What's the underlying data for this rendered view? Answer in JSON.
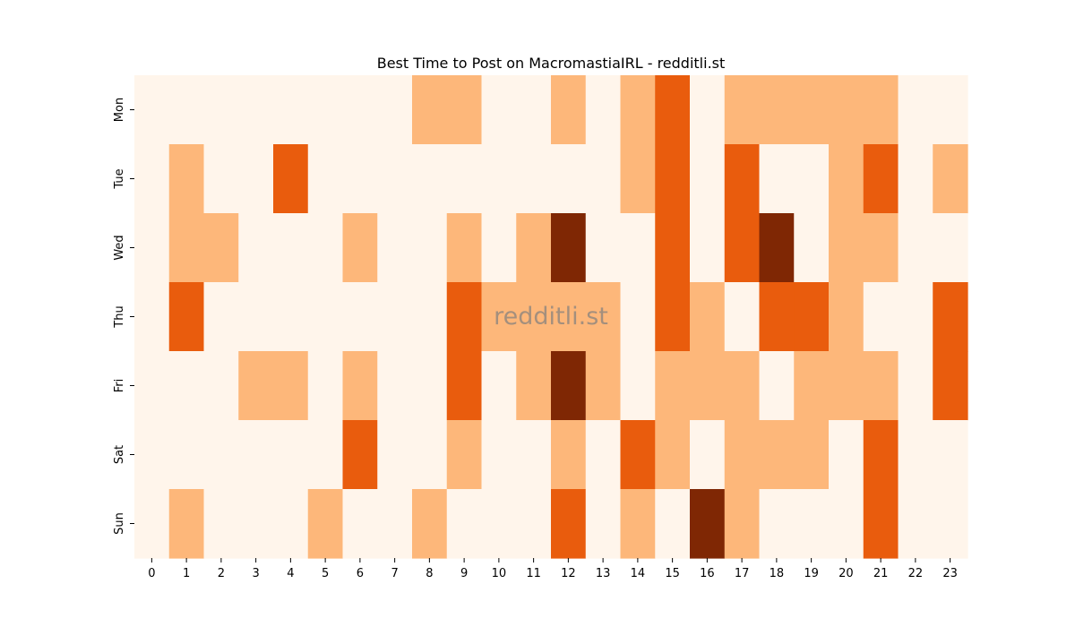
{
  "chart_data": {
    "type": "heatmap",
    "title": "Best Time to Post on MacromastiaIRL - redditli.st",
    "xlabel": "",
    "ylabel": "",
    "x": [
      "0",
      "1",
      "2",
      "3",
      "4",
      "5",
      "6",
      "7",
      "8",
      "9",
      "10",
      "11",
      "12",
      "13",
      "14",
      "15",
      "16",
      "17",
      "18",
      "19",
      "20",
      "21",
      "22",
      "23"
    ],
    "y": [
      "Mon",
      "Tue",
      "Wed",
      "Thu",
      "Fri",
      "Sat",
      "Sun"
    ],
    "levels": 4,
    "values": [
      [
        0,
        0,
        0,
        0,
        0,
        0,
        0,
        0,
        1,
        1,
        0,
        0,
        1,
        0,
        1,
        2,
        0,
        1,
        1,
        1,
        1,
        1,
        0,
        0
      ],
      [
        0,
        1,
        0,
        0,
        2,
        0,
        0,
        0,
        0,
        0,
        0,
        0,
        0,
        0,
        1,
        2,
        0,
        2,
        0,
        0,
        1,
        2,
        0,
        1
      ],
      [
        0,
        1,
        1,
        0,
        0,
        0,
        1,
        0,
        0,
        1,
        0,
        1,
        3,
        0,
        0,
        2,
        0,
        2,
        3,
        0,
        1,
        1,
        0,
        0
      ],
      [
        0,
        2,
        0,
        0,
        0,
        0,
        0,
        0,
        0,
        2,
        1,
        1,
        1,
        1,
        0,
        2,
        1,
        0,
        2,
        2,
        1,
        0,
        0,
        2
      ],
      [
        0,
        0,
        0,
        1,
        1,
        0,
        1,
        0,
        0,
        2,
        0,
        1,
        3,
        1,
        0,
        1,
        1,
        1,
        0,
        1,
        1,
        1,
        0,
        2
      ],
      [
        0,
        0,
        0,
        0,
        0,
        0,
        2,
        0,
        0,
        1,
        0,
        0,
        1,
        0,
        2,
        1,
        0,
        1,
        1,
        1,
        0,
        2,
        0,
        0
      ],
      [
        0,
        1,
        0,
        0,
        0,
        1,
        0,
        0,
        1,
        0,
        0,
        0,
        2,
        0,
        1,
        0,
        3,
        1,
        0,
        0,
        0,
        2,
        0,
        0
      ]
    ],
    "colors": [
      "#fff5eb",
      "#fdb77a",
      "#e95c0d",
      "#7f2704"
    ],
    "colorbar": false,
    "grid": false,
    "watermark": "redditli.st"
  }
}
